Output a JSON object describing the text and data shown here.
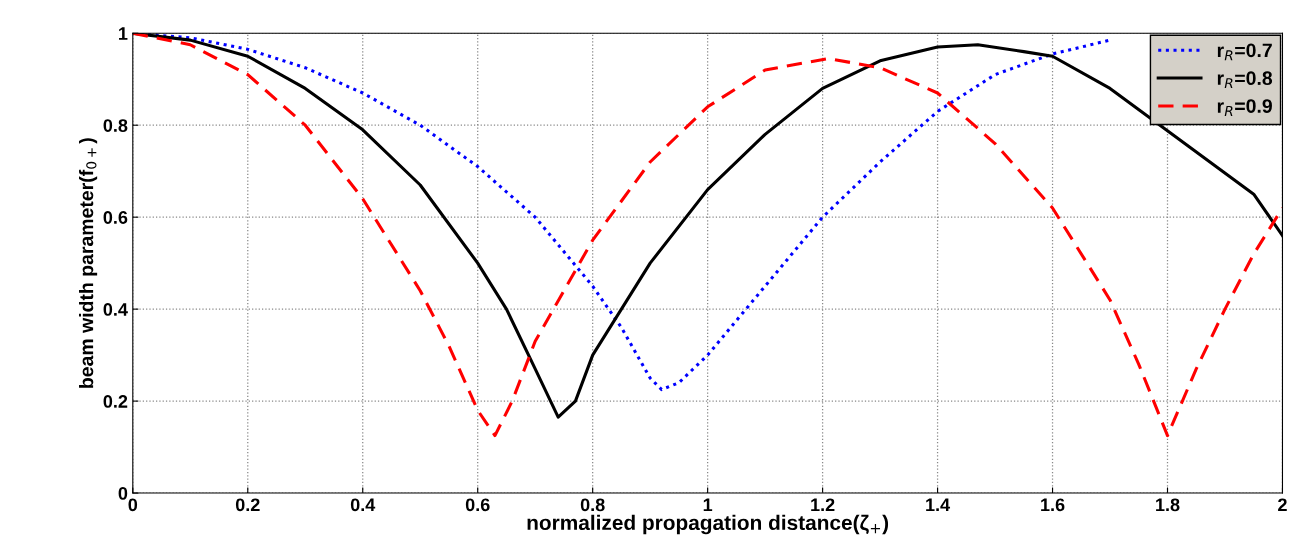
{
  "chart_data": {
    "type": "line",
    "xlabel": "normalized propagation distance(ζ$_{+}$)",
    "ylabel": "beam width parameter(f$_{0+}$)",
    "xlim": [
      0,
      2
    ],
    "ylim": [
      0,
      1
    ],
    "xticks": [
      0,
      0.2,
      0.4,
      0.6,
      0.8,
      1,
      1.2,
      1.4,
      1.6,
      1.8,
      2
    ],
    "yticks": [
      0,
      0.2,
      0.4,
      0.6,
      0.8,
      1
    ],
    "grid": true,
    "legend": "top right",
    "marker": "none",
    "series": [
      {
        "name": "r$_{R}$=0.7",
        "color": "#0000ff",
        "line_style": "dotted",
        "x": [
          0,
          0.1,
          0.2,
          0.3,
          0.4,
          0.5,
          0.6,
          0.7,
          0.8,
          0.85,
          0.9,
          0.92,
          0.95,
          1.0,
          1.1,
          1.2,
          1.3,
          1.4,
          1.5,
          1.6,
          1.7
        ],
        "values": [
          1,
          0.99,
          0.965,
          0.925,
          0.87,
          0.8,
          0.71,
          0.6,
          0.45,
          0.36,
          0.25,
          0.225,
          0.24,
          0.3,
          0.45,
          0.6,
          0.72,
          0.83,
          0.91,
          0.955,
          0.985
        ]
      },
      {
        "name": "r$_{R}$=0.8",
        "color": "#000000",
        "line_style": "solid",
        "x": [
          0,
          0.1,
          0.2,
          0.3,
          0.4,
          0.5,
          0.6,
          0.65,
          0.7,
          0.74,
          0.77,
          0.8,
          0.9,
          1.0,
          1.1,
          1.2,
          1.3,
          1.4,
          1.47,
          1.55,
          1.6,
          1.7,
          1.95,
          2.0
        ],
        "values": [
          1,
          0.985,
          0.95,
          0.88,
          0.79,
          0.67,
          0.5,
          0.4,
          0.27,
          0.165,
          0.2,
          0.3,
          0.5,
          0.66,
          0.78,
          0.88,
          0.94,
          0.97,
          0.975,
          0.96,
          0.95,
          0.88,
          0.65,
          0.56
        ]
      },
      {
        "name": "r$_{R}$=0.9",
        "color": "#ff0000",
        "line_style": "dashed",
        "x": [
          0,
          0.1,
          0.2,
          0.3,
          0.4,
          0.5,
          0.55,
          0.6,
          0.63,
          0.66,
          0.7,
          0.8,
          0.9,
          1.0,
          1.1,
          1.21,
          1.3,
          1.4,
          1.5,
          1.6,
          1.7,
          1.75,
          1.8,
          1.85,
          1.9,
          1.95,
          2.0
        ],
        "values": [
          1,
          0.975,
          0.91,
          0.8,
          0.64,
          0.44,
          0.32,
          0.18,
          0.125,
          0.2,
          0.33,
          0.55,
          0.72,
          0.84,
          0.92,
          0.945,
          0.925,
          0.87,
          0.76,
          0.62,
          0.42,
          0.28,
          0.125,
          0.27,
          0.4,
          0.52,
          0.62
        ]
      }
    ]
  }
}
